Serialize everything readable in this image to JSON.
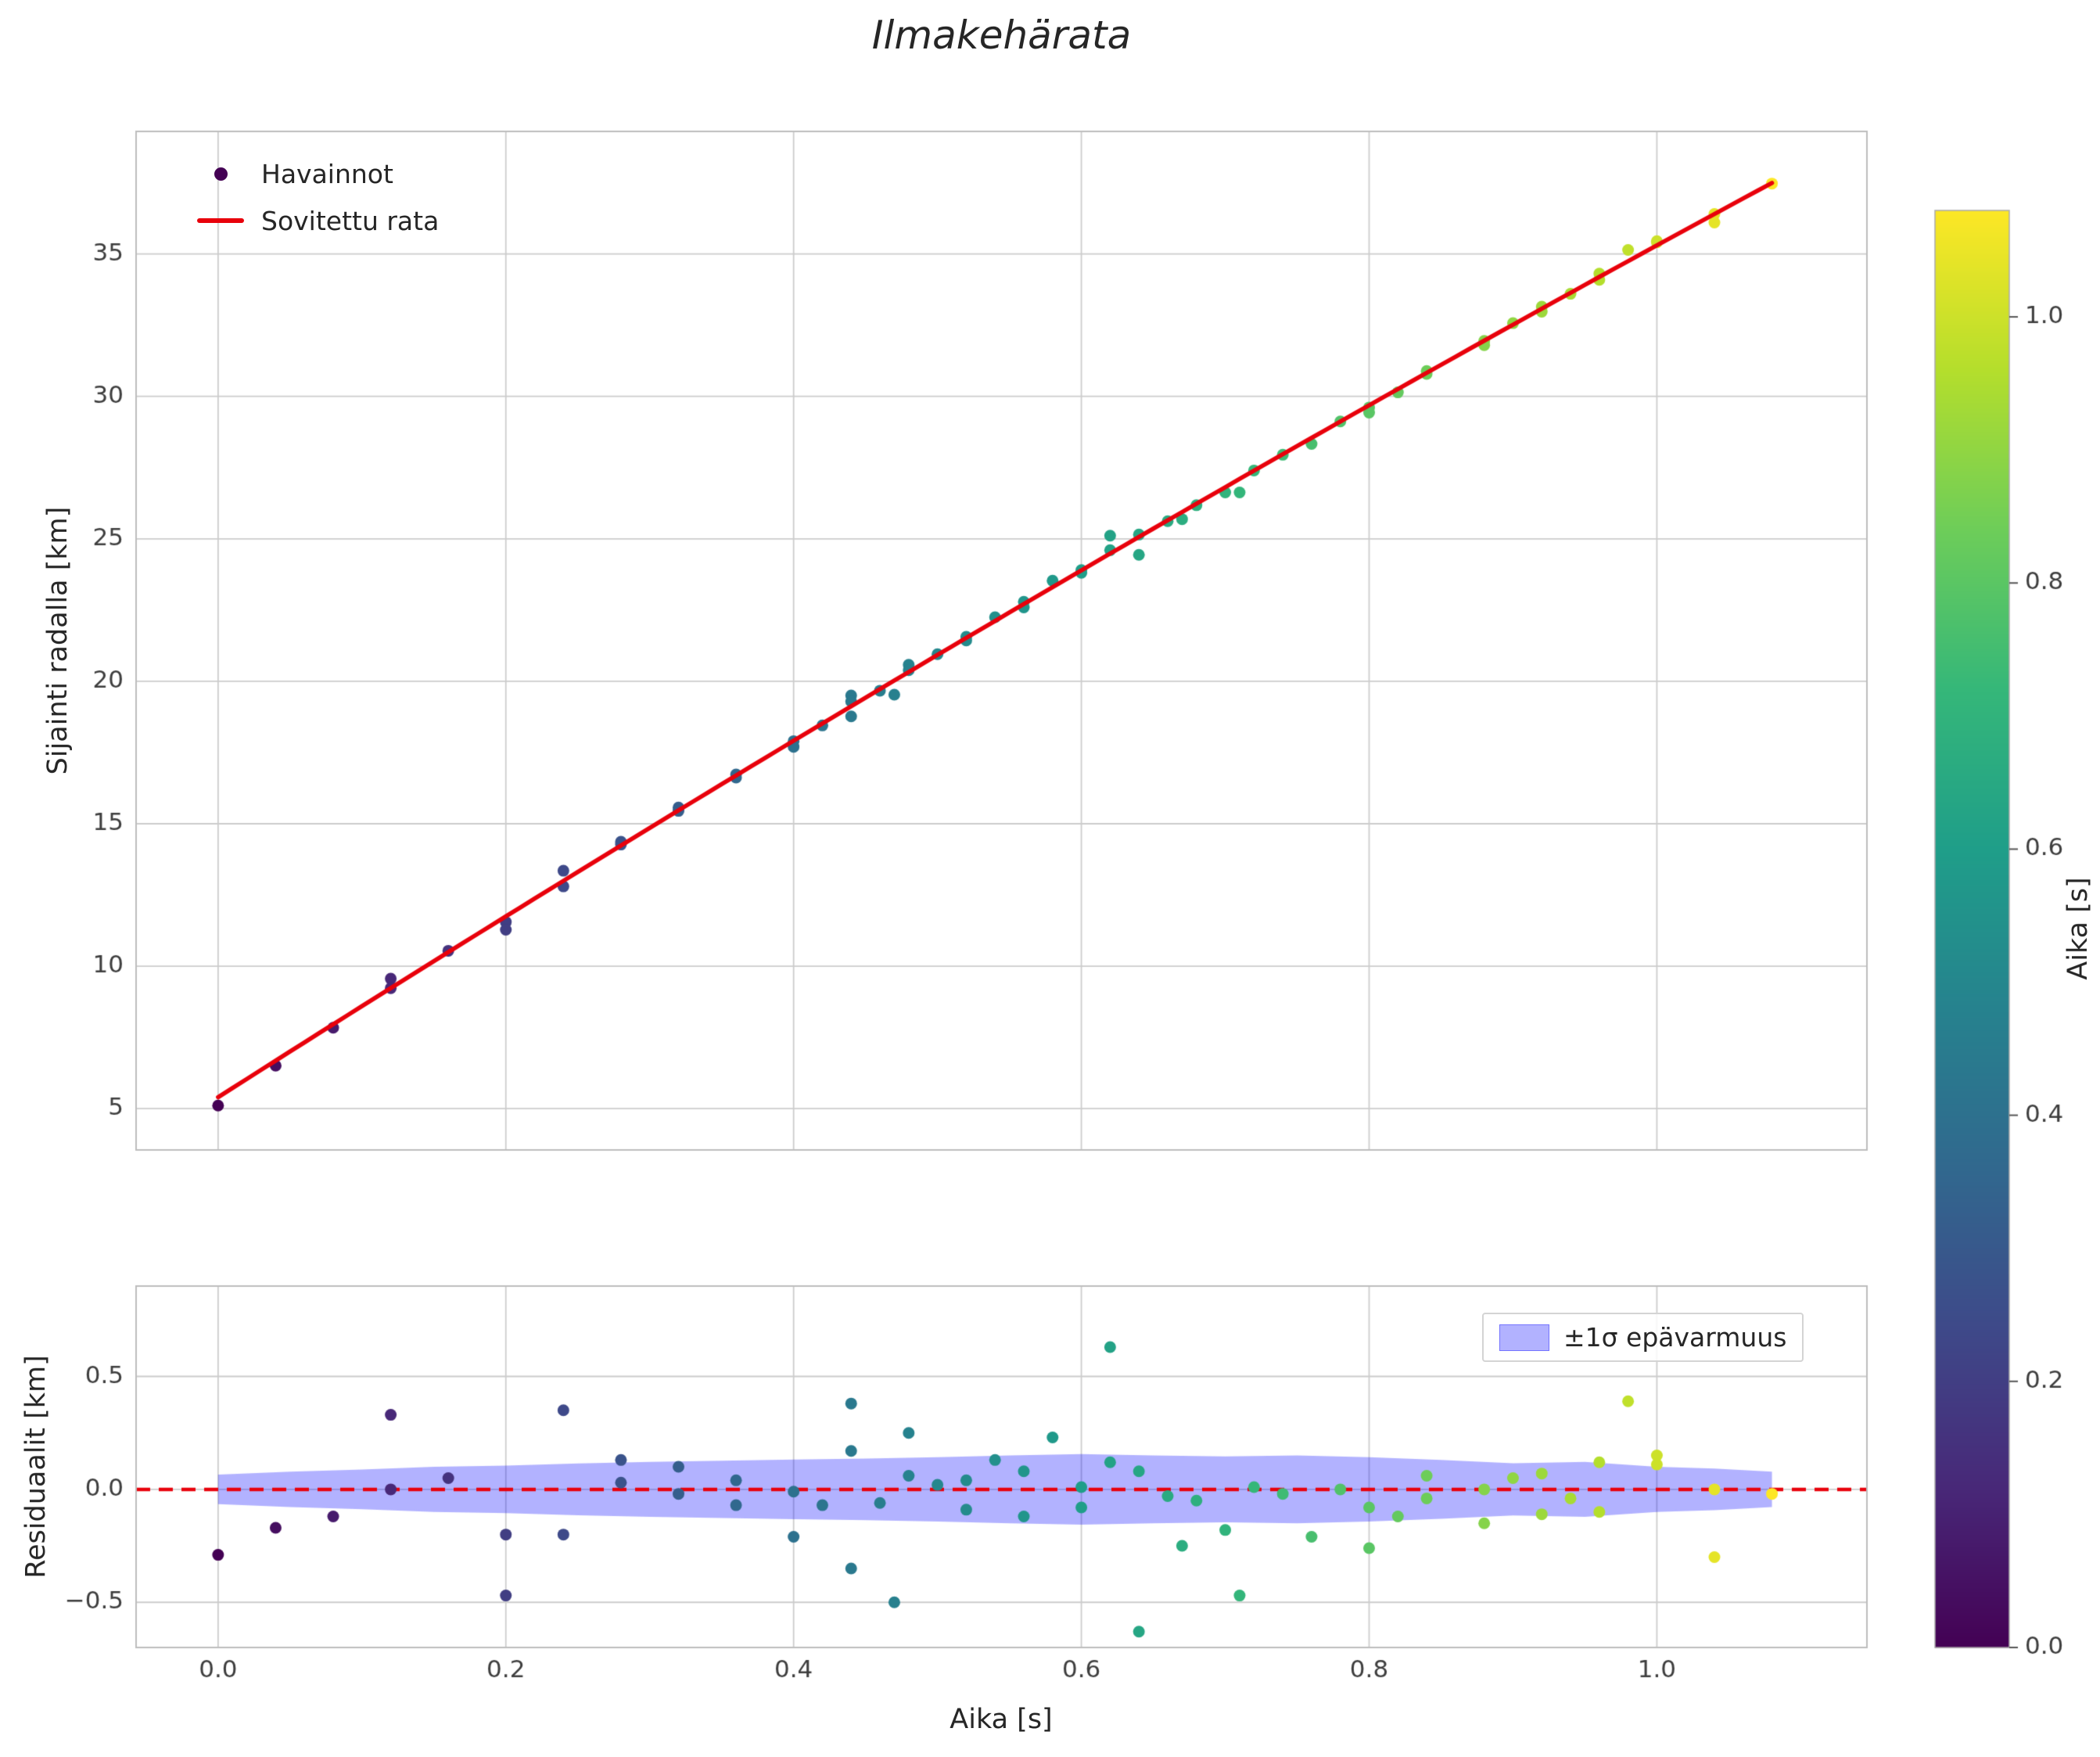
{
  "chart_data": [
    {
      "type": "scatter",
      "title": "Ilmakehärata",
      "ylabel": "Sijainti radalla [km]",
      "xlim": [
        -0.057,
        1.146
      ],
      "ylim": [
        3.55,
        39.3
      ],
      "xticks": [
        0.0,
        0.2,
        0.4,
        0.6,
        0.8,
        1.0
      ],
      "yticks": [
        5,
        10,
        15,
        20,
        25,
        30,
        35
      ],
      "grid": true,
      "legend": [
        {
          "label": "Havainnot",
          "marker": "dot",
          "color": "#440154"
        },
        {
          "label": "Sovitettu rata",
          "marker": "line",
          "color": "#e8000b"
        }
      ],
      "fit_curve": {
        "model": "quadratic",
        "intercept": 5.4,
        "slope": 32.2,
        "quad": -2.3,
        "t_range": [
          0.0,
          1.085
        ],
        "color": "#e8000b",
        "width": 5.5
      },
      "observations": {
        "t": [
          0.0,
          0.04,
          0.08,
          0.12,
          0.12,
          0.16,
          0.2,
          0.2,
          0.24,
          0.24,
          0.28,
          0.28,
          0.32,
          0.32,
          0.36,
          0.36,
          0.4,
          0.4,
          0.42,
          0.44,
          0.44,
          0.44,
          0.46,
          0.47,
          0.48,
          0.48,
          0.5,
          0.52,
          0.52,
          0.54,
          0.56,
          0.56,
          0.58,
          0.6,
          0.6,
          0.62,
          0.62,
          0.64,
          0.64,
          0.66,
          0.67,
          0.68,
          0.7,
          0.71,
          0.72,
          0.74,
          0.76,
          0.78,
          0.8,
          0.8,
          0.82,
          0.84,
          0.84,
          0.88,
          0.88,
          0.9,
          0.92,
          0.92,
          0.94,
          0.96,
          0.96,
          0.98,
          1.0,
          1.0,
          1.04,
          1.04,
          1.08
        ],
        "y_km": [
          5.11,
          6.51,
          7.84,
          9.56,
          9.23,
          10.54,
          11.55,
          11.28,
          13.35,
          12.8,
          14.37,
          14.27,
          15.57,
          15.45,
          16.73,
          16.62,
          17.9,
          17.7,
          18.45,
          19.5,
          19.29,
          18.77,
          19.67,
          19.53,
          20.58,
          20.39,
          20.95,
          21.56,
          21.43,
          22.25,
          22.79,
          22.59,
          23.53,
          23.9,
          23.81,
          25.11,
          24.6,
          25.15,
          24.44,
          25.62,
          25.69,
          26.18,
          26.63,
          26.63,
          27.4,
          27.95,
          28.33,
          29.12,
          29.61,
          29.43,
          30.14,
          30.89,
          30.79,
          31.95,
          31.8,
          32.57,
          33.15,
          32.97,
          33.6,
          34.31,
          34.09,
          35.14,
          35.45,
          35.41,
          36.4,
          36.1,
          37.47
        ],
        "residual_km": [
          -0.29,
          -0.17,
          -0.12,
          0.33,
          0.0,
          0.05,
          -0.2,
          -0.47,
          0.35,
          -0.2,
          0.13,
          0.03,
          0.1,
          -0.02,
          0.04,
          -0.07,
          -0.01,
          -0.21,
          -0.07,
          0.38,
          0.17,
          -0.35,
          -0.06,
          -0.5,
          0.25,
          0.06,
          0.02,
          0.04,
          -0.09,
          0.13,
          0.08,
          -0.12,
          0.23,
          0.01,
          -0.08,
          0.63,
          0.12,
          0.08,
          -0.63,
          -0.03,
          -0.25,
          -0.05,
          -0.18,
          -0.47,
          0.01,
          -0.02,
          -0.21,
          0.0,
          -0.08,
          -0.26,
          -0.12,
          0.06,
          -0.04,
          0.0,
          -0.15,
          0.05,
          0.07,
          -0.11,
          -0.04,
          0.12,
          -0.1,
          0.39,
          0.15,
          0.11,
          0.0,
          -0.3,
          -0.02
        ],
        "point_radius": 7.5,
        "color_by": "t"
      }
    },
    {
      "type": "scatter",
      "ylabel": "Residuaalit [km]",
      "xlabel": "Aika [s]",
      "xlim": [
        -0.057,
        1.146
      ],
      "ylim": [
        -0.7,
        0.9
      ],
      "xticks": [
        0.0,
        0.2,
        0.4,
        0.6,
        0.8,
        1.0
      ],
      "yticks": [
        -0.5,
        0.0,
        0.5
      ],
      "grid": true,
      "zero_line": {
        "y": 0.0,
        "style": "dashed",
        "color": "#e8000b",
        "width": 4.5
      },
      "legend": [
        {
          "label": "±1σ epävarmuus",
          "marker": "patch",
          "color": "rgba(0,0,255,0.30)"
        }
      ],
      "band": {
        "t": [
          0.0,
          0.05,
          0.1,
          0.15,
          0.2,
          0.25,
          0.3,
          0.35,
          0.4,
          0.45,
          0.5,
          0.55,
          0.6,
          0.65,
          0.7,
          0.75,
          0.8,
          0.85,
          0.9,
          0.95,
          1.0,
          1.04,
          1.08
        ],
        "half": [
          0.065,
          0.078,
          0.088,
          0.1,
          0.105,
          0.115,
          0.122,
          0.127,
          0.132,
          0.136,
          0.142,
          0.15,
          0.156,
          0.15,
          0.146,
          0.15,
          0.142,
          0.13,
          0.116,
          0.122,
          0.1,
          0.092,
          0.078
        ],
        "fill": "rgba(0,0,255,0.30)"
      }
    }
  ],
  "colorbar": {
    "label": "Aika [s]",
    "vmin": 0.0,
    "vmax": 1.08,
    "ticks": [
      0.0,
      0.2,
      0.4,
      0.6,
      0.8,
      1.0
    ],
    "colormap": "viridis"
  },
  "style": {
    "grid_color": "#cccccc",
    "spine_color": "#bdbdbd",
    "tick_color": "#3d3d3d",
    "background": "#ffffff"
  }
}
